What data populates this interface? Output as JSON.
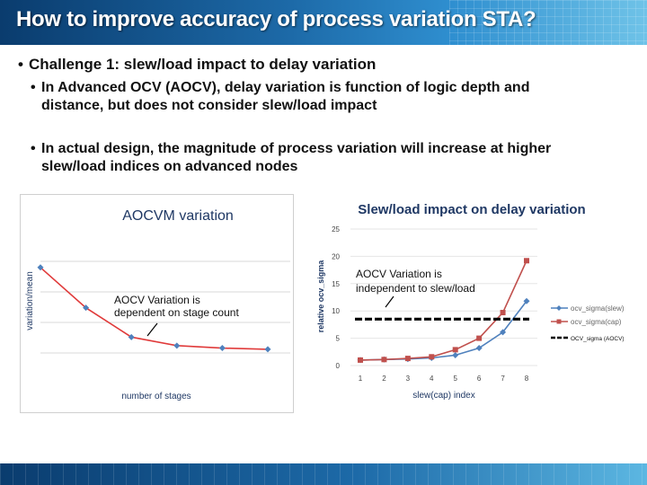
{
  "slide": {
    "title": "How to improve accuracy of process variation STA?",
    "bullets": [
      {
        "text": "Challenge 1: slew/load impact to delay variation"
      },
      {
        "line1": "In Advanced OCV (AOCV), delay variation is function of logic depth and",
        "line2": "distance, but does not consider slew/load impact"
      },
      {
        "line1": "In actual design, the magnitude of process variation will increase at higher",
        "line2": "slew/load indices on advanced nodes"
      }
    ],
    "bullet_symbol": "•"
  },
  "colors": {
    "title_bar": "#1d6aa8",
    "left_line": "#e03a3a",
    "left_marker": "#4f81bd",
    "series_slew": "#4f81bd",
    "series_cap": "#c0504d",
    "aocv_line": "#000000",
    "grid": "#d9d9d9"
  },
  "chart_data": [
    {
      "type": "line",
      "title": "AOCVM variation",
      "xlabel": "number of stages",
      "ylabel": "variation/mean",
      "x": [
        1,
        2,
        3,
        4,
        5,
        6
      ],
      "series": [
        {
          "values": [
            0.95,
            0.62,
            0.38,
            0.31,
            0.29,
            0.28
          ]
        }
      ],
      "ylim": [
        0,
        1.25
      ],
      "grid": "horizontal",
      "annotations": [
        {
          "text": "AOCV Variation is dependent on stage count"
        }
      ]
    },
    {
      "type": "line",
      "title": "Slew/load impact on delay variation",
      "xlabel": "slew(cap) index",
      "ylabel": "relative ocv_sigma",
      "x": [
        1,
        2,
        3,
        4,
        5,
        6,
        7,
        8
      ],
      "y_ticks": [
        0,
        5,
        10,
        15,
        20,
        25
      ],
      "ylim": [
        0,
        25
      ],
      "series": [
        {
          "name": "ocv_sigma(slew)",
          "values": [
            1.0,
            1.1,
            1.2,
            1.4,
            1.9,
            3.2,
            6.1,
            11.8
          ]
        },
        {
          "name": "ocv_sigma(cap)",
          "values": [
            1.0,
            1.1,
            1.3,
            1.6,
            2.9,
            5.0,
            9.7,
            19.2
          ]
        },
        {
          "name": "OCV_sigma (AOCV)",
          "values": [
            8.5,
            8.5,
            8.5,
            8.5,
            8.5,
            8.5,
            8.5,
            8.5
          ]
        }
      ],
      "legend": "right",
      "annotations": [
        {
          "text": "AOCV Variation is independent to slew/load"
        }
      ]
    }
  ]
}
